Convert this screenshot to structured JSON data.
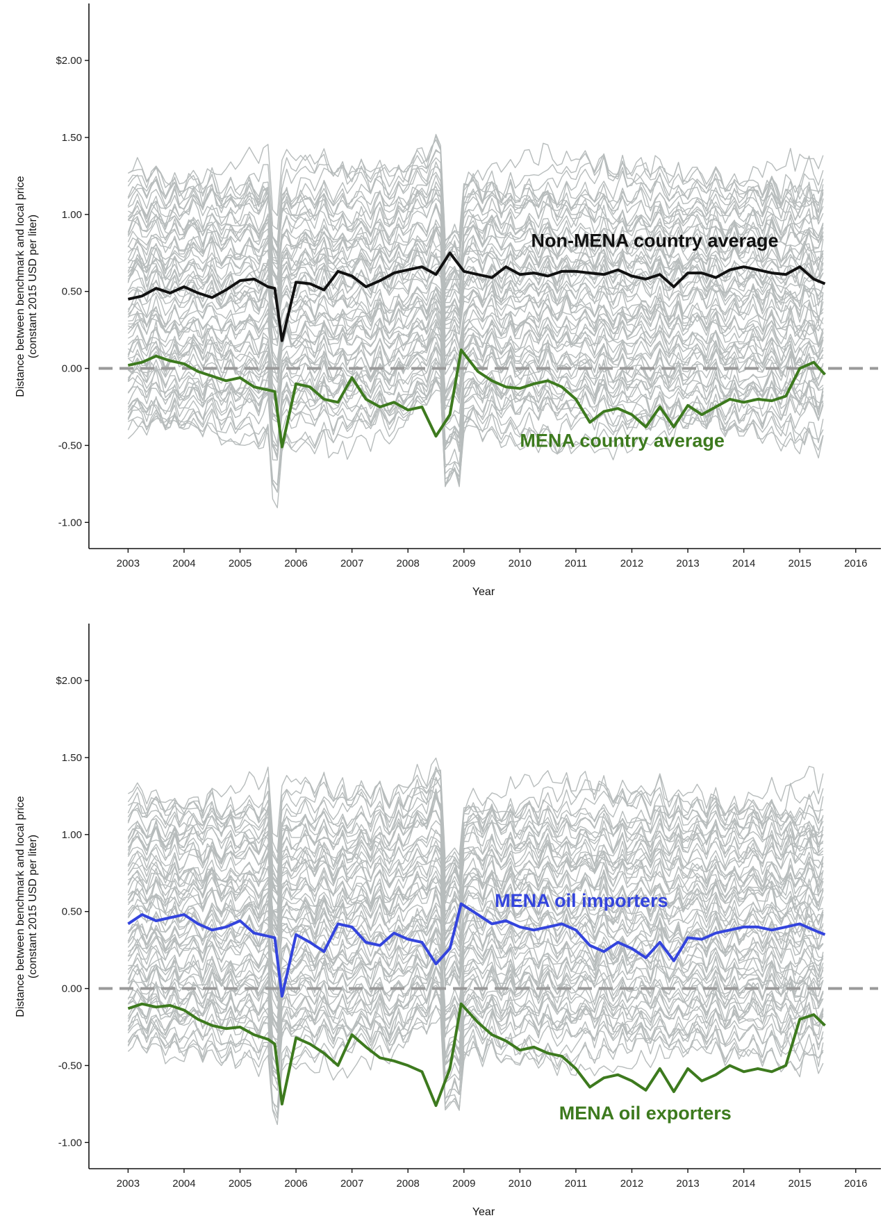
{
  "chart_data": [
    {
      "type": "line",
      "xlabel": "Year",
      "ylabel": "Distance between benchmark and local price",
      "ylabel_sub": "(constant 2015 USD per liter)",
      "xlim": [
        2002.35,
        2016.4
      ],
      "ylim": [
        -1.17,
        2.37
      ],
      "x_ticks": [
        2003,
        2004,
        2005,
        2006,
        2007,
        2008,
        2009,
        2010,
        2011,
        2012,
        2013,
        2014,
        2015,
        2016
      ],
      "x_tick_labels": [
        "2003",
        "2004",
        "2005",
        "2006",
        "2007",
        "2008",
        "2009",
        "2010",
        "2011",
        "2012",
        "2013",
        "2014",
        "2015",
        "2016"
      ],
      "y_ticks": [
        -1.0,
        -0.5,
        0.0,
        0.5,
        1.0,
        1.5,
        2.0
      ],
      "y_tick_labels": [
        "-1.00",
        "-0.50",
        "0.00",
        "0.50",
        "1.00",
        "1.50",
        "$2.00"
      ],
      "reference_line": {
        "y": 0,
        "style": "dashed",
        "color": "#9a9a9a"
      },
      "background_series": {
        "description_color": "#b7bcbc",
        "count": 70
      },
      "series": [
        {
          "name": "Non-MENA country average",
          "color": "#111111",
          "label_position": {
            "x": 2010.2,
            "y": 0.79
          },
          "x": [
            2003.0,
            2003.25,
            2003.5,
            2003.75,
            2004.0,
            2004.25,
            2004.5,
            2004.75,
            2005.0,
            2005.25,
            2005.5,
            2005.62,
            2005.75,
            2006.0,
            2006.25,
            2006.5,
            2006.75,
            2007.0,
            2007.25,
            2007.5,
            2007.75,
            2008.0,
            2008.25,
            2008.5,
            2008.75,
            2009.0,
            2009.25,
            2009.5,
            2009.75,
            2010.0,
            2010.25,
            2010.5,
            2010.75,
            2011.0,
            2011.25,
            2011.5,
            2011.75,
            2012.0,
            2012.25,
            2012.5,
            2012.75,
            2013.0,
            2013.25,
            2013.5,
            2013.75,
            2014.0,
            2014.25,
            2014.5,
            2014.75,
            2015.0,
            2015.25,
            2015.45
          ],
          "y": [
            0.45,
            0.47,
            0.52,
            0.49,
            0.53,
            0.49,
            0.46,
            0.51,
            0.57,
            0.58,
            0.53,
            0.52,
            0.18,
            0.56,
            0.55,
            0.51,
            0.63,
            0.6,
            0.53,
            0.57,
            0.62,
            0.64,
            0.66,
            0.61,
            0.75,
            0.63,
            0.61,
            0.59,
            0.66,
            0.61,
            0.62,
            0.6,
            0.63,
            0.63,
            0.62,
            0.61,
            0.64,
            0.6,
            0.58,
            0.61,
            0.53,
            0.62,
            0.62,
            0.59,
            0.64,
            0.66,
            0.64,
            0.62,
            0.61,
            0.66,
            0.58,
            0.55
          ]
        },
        {
          "name": "MENA country average",
          "color": "#3d7a1e",
          "label_position": {
            "x": 2010.0,
            "y": -0.51
          },
          "x": [
            2003.0,
            2003.25,
            2003.5,
            2003.75,
            2004.0,
            2004.25,
            2004.5,
            2004.75,
            2005.0,
            2005.25,
            2005.5,
            2005.62,
            2005.75,
            2006.0,
            2006.25,
            2006.5,
            2006.75,
            2007.0,
            2007.25,
            2007.5,
            2007.75,
            2008.0,
            2008.25,
            2008.5,
            2008.75,
            2008.95,
            2009.25,
            2009.5,
            2009.75,
            2010.0,
            2010.25,
            2010.5,
            2010.75,
            2011.0,
            2011.25,
            2011.5,
            2011.75,
            2012.0,
            2012.25,
            2012.5,
            2012.75,
            2013.0,
            2013.25,
            2013.5,
            2013.75,
            2014.0,
            2014.25,
            2014.5,
            2014.75,
            2015.0,
            2015.25,
            2015.45
          ],
          "y": [
            0.02,
            0.04,
            0.08,
            0.05,
            0.03,
            -0.02,
            -0.05,
            -0.08,
            -0.06,
            -0.12,
            -0.14,
            -0.15,
            -0.51,
            -0.1,
            -0.12,
            -0.2,
            -0.22,
            -0.06,
            -0.2,
            -0.25,
            -0.22,
            -0.27,
            -0.25,
            -0.44,
            -0.3,
            0.12,
            -0.02,
            -0.08,
            -0.12,
            -0.13,
            -0.1,
            -0.08,
            -0.12,
            -0.2,
            -0.35,
            -0.28,
            -0.26,
            -0.3,
            -0.38,
            -0.25,
            -0.38,
            -0.24,
            -0.3,
            -0.25,
            -0.2,
            -0.22,
            -0.2,
            -0.21,
            -0.18,
            0.0,
            0.04,
            -0.04
          ]
        }
      ]
    },
    {
      "type": "line",
      "xlabel": "Year",
      "ylabel": "Distance between benchmark and local price",
      "ylabel_sub": "(constant 2015 USD per liter)",
      "xlim": [
        2002.35,
        2016.4
      ],
      "ylim": [
        -1.17,
        2.37
      ],
      "x_ticks": [
        2003,
        2004,
        2005,
        2006,
        2007,
        2008,
        2009,
        2010,
        2011,
        2012,
        2013,
        2014,
        2015,
        2016
      ],
      "x_tick_labels": [
        "2003",
        "2004",
        "2005",
        "2006",
        "2007",
        "2008",
        "2009",
        "2010",
        "2011",
        "2012",
        "2013",
        "2014",
        "2015",
        "2016"
      ],
      "y_ticks": [
        -1.0,
        -0.5,
        0.0,
        0.5,
        1.0,
        1.5,
        2.0
      ],
      "y_tick_labels": [
        "-1.00",
        "-0.50",
        "0.00",
        "0.50",
        "1.00",
        "1.50",
        "$2.00"
      ],
      "reference_line": {
        "y": 0,
        "style": "dashed",
        "color": "#9a9a9a"
      },
      "background_series": {
        "description_color": "#b7bcbc",
        "count": 70
      },
      "series": [
        {
          "name": "MENA oil importers",
          "color": "#3344dd",
          "label_position": {
            "x": 2009.55,
            "y": 0.53
          },
          "x": [
            2003.0,
            2003.25,
            2003.5,
            2003.75,
            2004.0,
            2004.25,
            2004.5,
            2004.75,
            2005.0,
            2005.25,
            2005.5,
            2005.62,
            2005.75,
            2006.0,
            2006.25,
            2006.5,
            2006.75,
            2007.0,
            2007.25,
            2007.5,
            2007.75,
            2008.0,
            2008.25,
            2008.5,
            2008.75,
            2008.95,
            2009.25,
            2009.5,
            2009.75,
            2010.0,
            2010.25,
            2010.5,
            2010.75,
            2011.0,
            2011.25,
            2011.5,
            2011.75,
            2012.0,
            2012.25,
            2012.5,
            2012.75,
            2013.0,
            2013.25,
            2013.5,
            2013.75,
            2014.0,
            2014.25,
            2014.5,
            2014.75,
            2015.0,
            2015.25,
            2015.45
          ],
          "y": [
            0.42,
            0.48,
            0.44,
            0.46,
            0.48,
            0.42,
            0.38,
            0.4,
            0.44,
            0.36,
            0.34,
            0.33,
            -0.05,
            0.35,
            0.3,
            0.24,
            0.42,
            0.4,
            0.3,
            0.28,
            0.36,
            0.32,
            0.3,
            0.16,
            0.26,
            0.55,
            0.48,
            0.42,
            0.44,
            0.4,
            0.38,
            0.4,
            0.42,
            0.38,
            0.28,
            0.24,
            0.3,
            0.26,
            0.2,
            0.3,
            0.18,
            0.33,
            0.32,
            0.36,
            0.38,
            0.4,
            0.4,
            0.38,
            0.4,
            0.42,
            0.38,
            0.35
          ]
        },
        {
          "name": "MENA oil exporters",
          "color": "#3d7a1e",
          "label_position": {
            "x": 2010.7,
            "y": -0.85
          },
          "x": [
            2003.0,
            2003.25,
            2003.5,
            2003.75,
            2004.0,
            2004.25,
            2004.5,
            2004.75,
            2005.0,
            2005.25,
            2005.5,
            2005.62,
            2005.75,
            2006.0,
            2006.25,
            2006.5,
            2006.75,
            2007.0,
            2007.25,
            2007.5,
            2007.75,
            2008.0,
            2008.25,
            2008.5,
            2008.75,
            2008.95,
            2009.25,
            2009.5,
            2009.75,
            2010.0,
            2010.25,
            2010.5,
            2010.75,
            2011.0,
            2011.25,
            2011.5,
            2011.75,
            2012.0,
            2012.25,
            2012.5,
            2012.75,
            2013.0,
            2013.25,
            2013.5,
            2013.75,
            2014.0,
            2014.25,
            2014.5,
            2014.75,
            2015.0,
            2015.25,
            2015.45
          ],
          "y": [
            -0.13,
            -0.1,
            -0.12,
            -0.11,
            -0.14,
            -0.2,
            -0.24,
            -0.26,
            -0.25,
            -0.3,
            -0.33,
            -0.36,
            -0.75,
            -0.32,
            -0.36,
            -0.42,
            -0.5,
            -0.3,
            -0.38,
            -0.45,
            -0.47,
            -0.5,
            -0.54,
            -0.76,
            -0.52,
            -0.1,
            -0.22,
            -0.3,
            -0.34,
            -0.4,
            -0.38,
            -0.42,
            -0.44,
            -0.52,
            -0.64,
            -0.58,
            -0.56,
            -0.6,
            -0.66,
            -0.52,
            -0.67,
            -0.52,
            -0.6,
            -0.56,
            -0.5,
            -0.54,
            -0.52,
            -0.54,
            -0.5,
            -0.2,
            -0.17,
            -0.24
          ]
        }
      ]
    }
  ]
}
